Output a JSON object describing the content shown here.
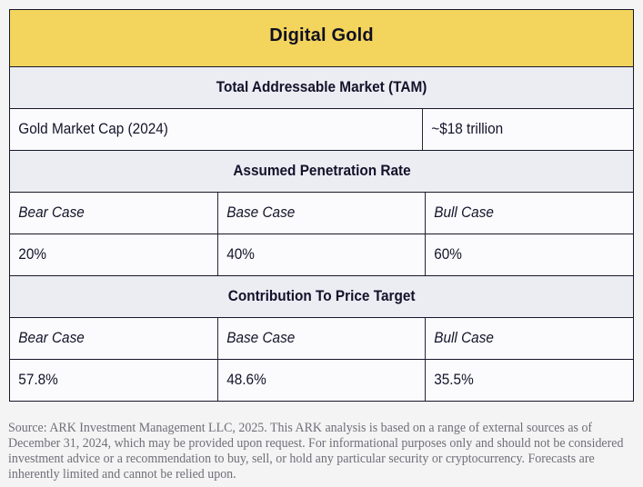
{
  "chart_data": {
    "type": "table",
    "title": "Digital Gold",
    "sections": [
      {
        "header": "Total Addressable Market (TAM)",
        "rows": [
          [
            "Gold Market Cap (2024)",
            "~$18 trillion"
          ]
        ]
      },
      {
        "header": "Assumed Penetration Rate",
        "rows": [
          [
            "Bear Case",
            "Base Case",
            "Bull Case"
          ],
          [
            "20%",
            "40%",
            "60%"
          ]
        ]
      },
      {
        "header": "Contribution To Price Target",
        "rows": [
          [
            "Bear Case",
            "Base Case",
            "Bull Case"
          ],
          [
            "57.8%",
            "48.6%",
            "35.5%"
          ]
        ]
      }
    ]
  },
  "footer": {
    "lines": [
      "Source: ARK Investment Management LLC, 2025. This ARK analysis is based on a range of external sources as of",
      "December 31, 2024, which may be provided upon request. For informational purposes only and should not be considered",
      "investment advice or a recommendation to buy, sell, or hold any particular security or cryptocurrency. Forecasts are",
      "inherently limited and cannot be relied upon."
    ]
  },
  "colors": {
    "header_bg": "#f3d45c",
    "section_bg": "#ebedf3",
    "row_bg": "#fbfbfd",
    "border": "#17172a",
    "text": "#14142a",
    "footer_text": "#6f6f79",
    "page_bg": "#f4f4f4"
  }
}
